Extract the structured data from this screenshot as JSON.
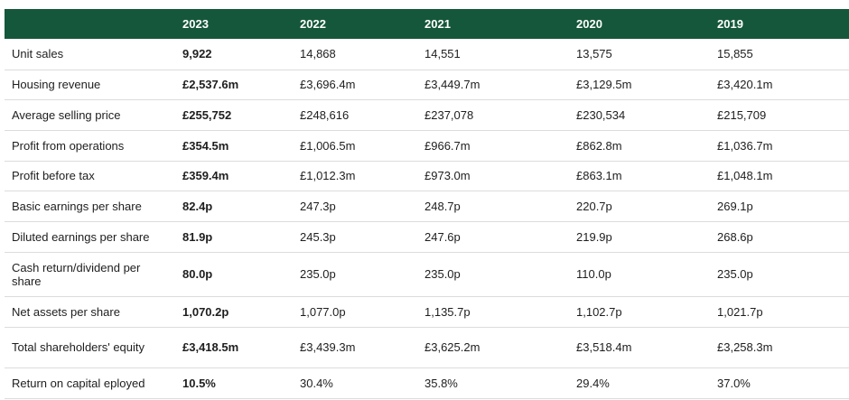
{
  "table": {
    "header": [
      "2023",
      "2022",
      "2021",
      "2020",
      "2019"
    ],
    "rows": [
      [
        "Unit sales",
        "9,922",
        "14,868",
        "14,551",
        "13,575",
        "15,855"
      ],
      [
        "Housing revenue",
        "£2,537.6m",
        "£3,696.4m",
        "£3,449.7m",
        "£3,129.5m",
        "£3,420.1m"
      ],
      [
        "Average selling price",
        "£255,752",
        "£248,616",
        "£237,078",
        "£230,534",
        "£215,709"
      ],
      [
        "Profit from operations",
        "£354.5m",
        "£1,006.5m",
        "£966.7m",
        "£862.8m",
        "£1,036.7m"
      ],
      [
        "Profit before tax",
        "£359.4m",
        "£1,012.3m",
        "£973.0m",
        "£863.1m",
        "£1,048.1m"
      ],
      [
        "Basic earnings per share",
        "82.4p",
        "247.3p",
        "248.7p",
        "220.7p",
        "269.1p"
      ],
      [
        "Diluted earnings per share",
        "81.9p",
        "245.3p",
        "247.6p",
        "219.9p",
        "268.6p"
      ],
      [
        "Cash return/dividend per share",
        "80.0p",
        "235.0p",
        "235.0p",
        "110.0p",
        "235.0p"
      ],
      [
        "Net assets per share",
        "1,070.2p",
        "1,077.0p",
        "1,135.7p",
        "1,102.7p",
        "1,021.7p"
      ],
      [
        "Total shareholders' equity",
        "£3,418.5m",
        "£3,439.3m",
        "£3,625.2m",
        "£3,518.4m",
        "£3,258.3m"
      ],
      [
        "Return on capital eployed",
        "10.5%",
        "30.4%",
        "35.8%",
        "29.4%",
        "37.0%"
      ]
    ]
  }
}
